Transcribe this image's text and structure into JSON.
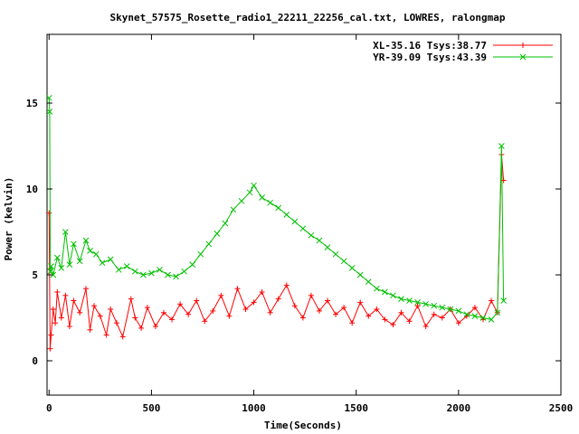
{
  "chart_data": {
    "type": "line",
    "title": "Skynet_57575_Rosette_radio1_22211_22256_cal.txt, LOWRES, ralongmap",
    "xlabel": "Time(Seconds)",
    "ylabel": "Power (kelvin)",
    "xlim": [
      -10,
      2500
    ],
    "ylim": [
      -2,
      19
    ],
    "xticks": [
      0,
      500,
      1000,
      1500,
      2000,
      2500
    ],
    "yticks": [
      0,
      5,
      10,
      15
    ],
    "grid": false,
    "legend_position": "top-right",
    "series": [
      {
        "name": "XL-35.16 Tsys:38.77",
        "color": "#ff0000",
        "marker": "+",
        "x": [
          0,
          5,
          10,
          20,
          30,
          40,
          60,
          80,
          100,
          120,
          150,
          180,
          200,
          220,
          250,
          280,
          300,
          330,
          360,
          400,
          420,
          450,
          480,
          520,
          560,
          600,
          640,
          680,
          720,
          760,
          800,
          840,
          880,
          920,
          960,
          1000,
          1040,
          1080,
          1120,
          1160,
          1200,
          1240,
          1280,
          1320,
          1360,
          1400,
          1440,
          1480,
          1520,
          1560,
          1600,
          1640,
          1680,
          1720,
          1760,
          1800,
          1840,
          1880,
          1920,
          1960,
          2000,
          2040,
          2080,
          2120,
          2160,
          2190,
          2210,
          2220
        ],
        "y": [
          8.6,
          0.7,
          1.5,
          3.0,
          2.2,
          4.0,
          2.5,
          3.8,
          2.0,
          3.5,
          2.8,
          4.2,
          1.8,
          3.2,
          2.6,
          1.5,
          3.0,
          2.2,
          1.4,
          3.6,
          2.5,
          1.9,
          3.1,
          2.0,
          2.8,
          2.4,
          3.3,
          2.7,
          3.5,
          2.3,
          2.9,
          3.8,
          2.6,
          4.2,
          3.0,
          3.4,
          4.0,
          2.8,
          3.6,
          4.4,
          3.2,
          2.5,
          3.8,
          2.9,
          3.5,
          2.7,
          3.1,
          2.2,
          3.4,
          2.6,
          3.0,
          2.4,
          2.1,
          2.8,
          2.3,
          3.2,
          2.0,
          2.7,
          2.5,
          3.0,
          2.2,
          2.6,
          3.1,
          2.4,
          3.5,
          2.8,
          12.0,
          10.5
        ]
      },
      {
        "name": "YR-39.09 Tsys:43.39",
        "color": "#00c000",
        "marker": "x",
        "x": [
          0,
          3,
          6,
          10,
          20,
          40,
          60,
          80,
          100,
          120,
          150,
          180,
          200,
          230,
          260,
          300,
          340,
          380,
          420,
          460,
          500,
          540,
          580,
          620,
          660,
          700,
          740,
          780,
          820,
          860,
          900,
          940,
          980,
          1000,
          1040,
          1080,
          1120,
          1160,
          1200,
          1240,
          1280,
          1320,
          1360,
          1400,
          1440,
          1480,
          1520,
          1560,
          1600,
          1640,
          1680,
          1720,
          1760,
          1800,
          1840,
          1880,
          1920,
          1960,
          2000,
          2040,
          2080,
          2120,
          2160,
          2190,
          2210,
          2220
        ],
        "y": [
          15.3,
          14.5,
          5.2,
          5.5,
          5.0,
          6.0,
          5.4,
          7.5,
          5.6,
          6.8,
          5.8,
          7.0,
          6.4,
          6.2,
          5.7,
          5.9,
          5.3,
          5.5,
          5.2,
          5.0,
          5.1,
          5.3,
          5.0,
          4.9,
          5.2,
          5.6,
          6.2,
          6.8,
          7.4,
          8.0,
          8.8,
          9.3,
          9.8,
          10.2,
          9.5,
          9.2,
          8.9,
          8.5,
          8.1,
          7.7,
          7.3,
          7.0,
          6.6,
          6.2,
          5.8,
          5.4,
          5.0,
          4.6,
          4.2,
          4.0,
          3.8,
          3.6,
          3.5,
          3.4,
          3.3,
          3.2,
          3.1,
          3.0,
          2.9,
          2.7,
          2.6,
          2.5,
          2.4,
          2.8,
          12.5,
          3.5
        ]
      }
    ]
  }
}
